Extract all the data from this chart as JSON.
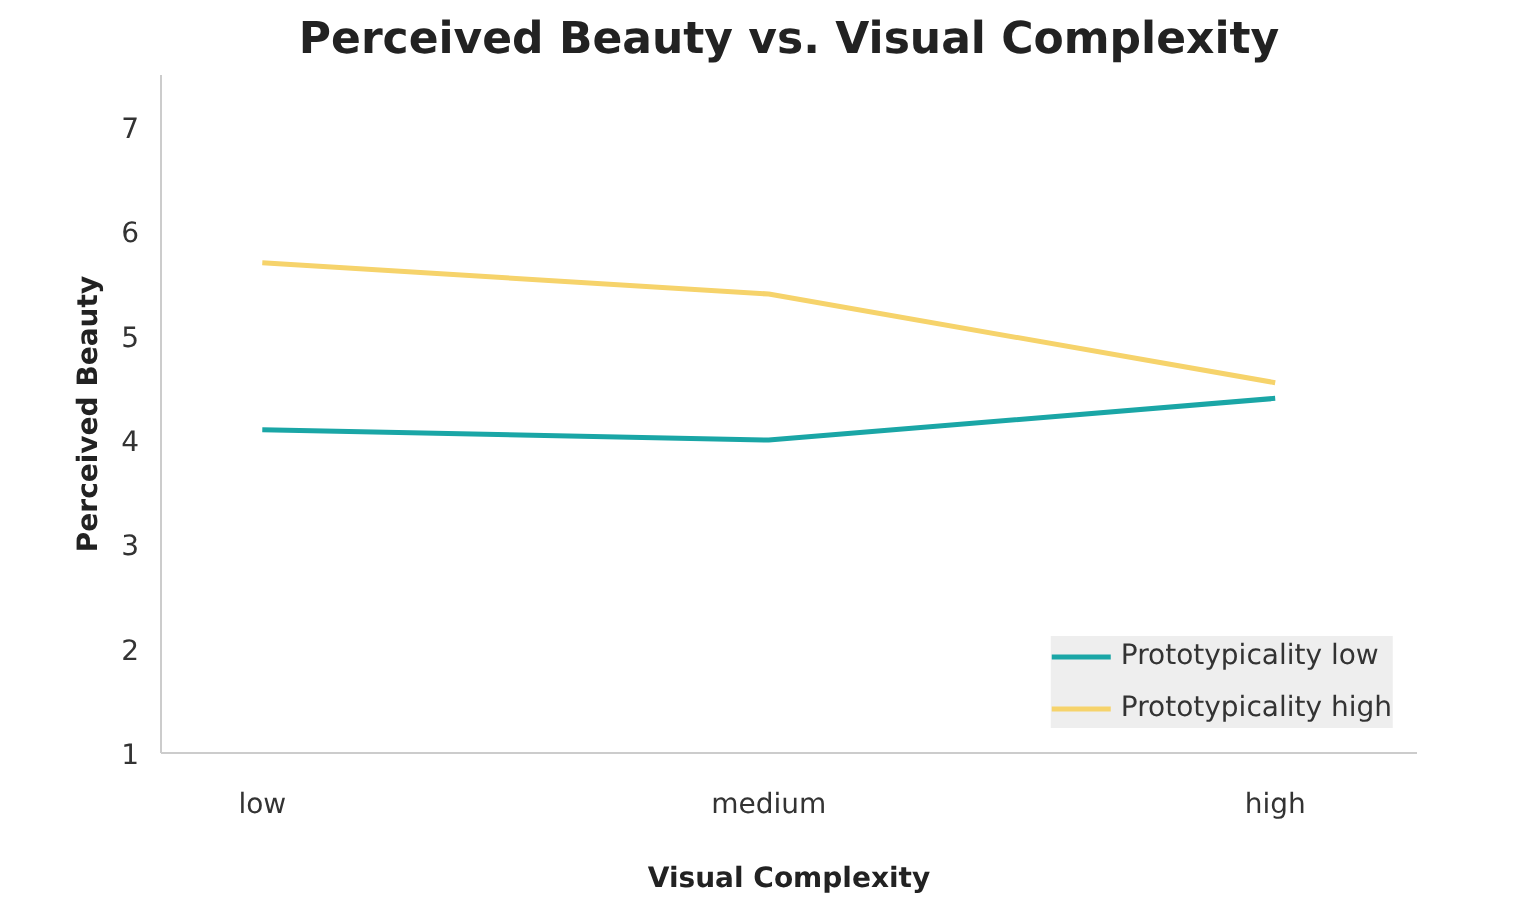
{
  "chart_data": {
    "type": "line",
    "title": "Perceived Beauty vs. Visual Complexity",
    "xlabel": "Visual Complexity",
    "ylabel": "Perceived Beauty",
    "categories": [
      "low",
      "medium",
      "high"
    ],
    "series": [
      {
        "name": "Prototypicality low",
        "color": "#1aa6a6",
        "values": [
          4.1,
          4.0,
          4.4
        ]
      },
      {
        "name": "Prototypicality high",
        "color": "#f6d36b",
        "values": [
          5.7,
          5.4,
          4.55
        ]
      }
    ],
    "ylim": [
      1,
      7.5
    ],
    "yticks": [
      1,
      2,
      3,
      4,
      5,
      6,
      7
    ],
    "grid": false,
    "legend": "bottom right",
    "marker": "none",
    "line_style": "solid"
  }
}
